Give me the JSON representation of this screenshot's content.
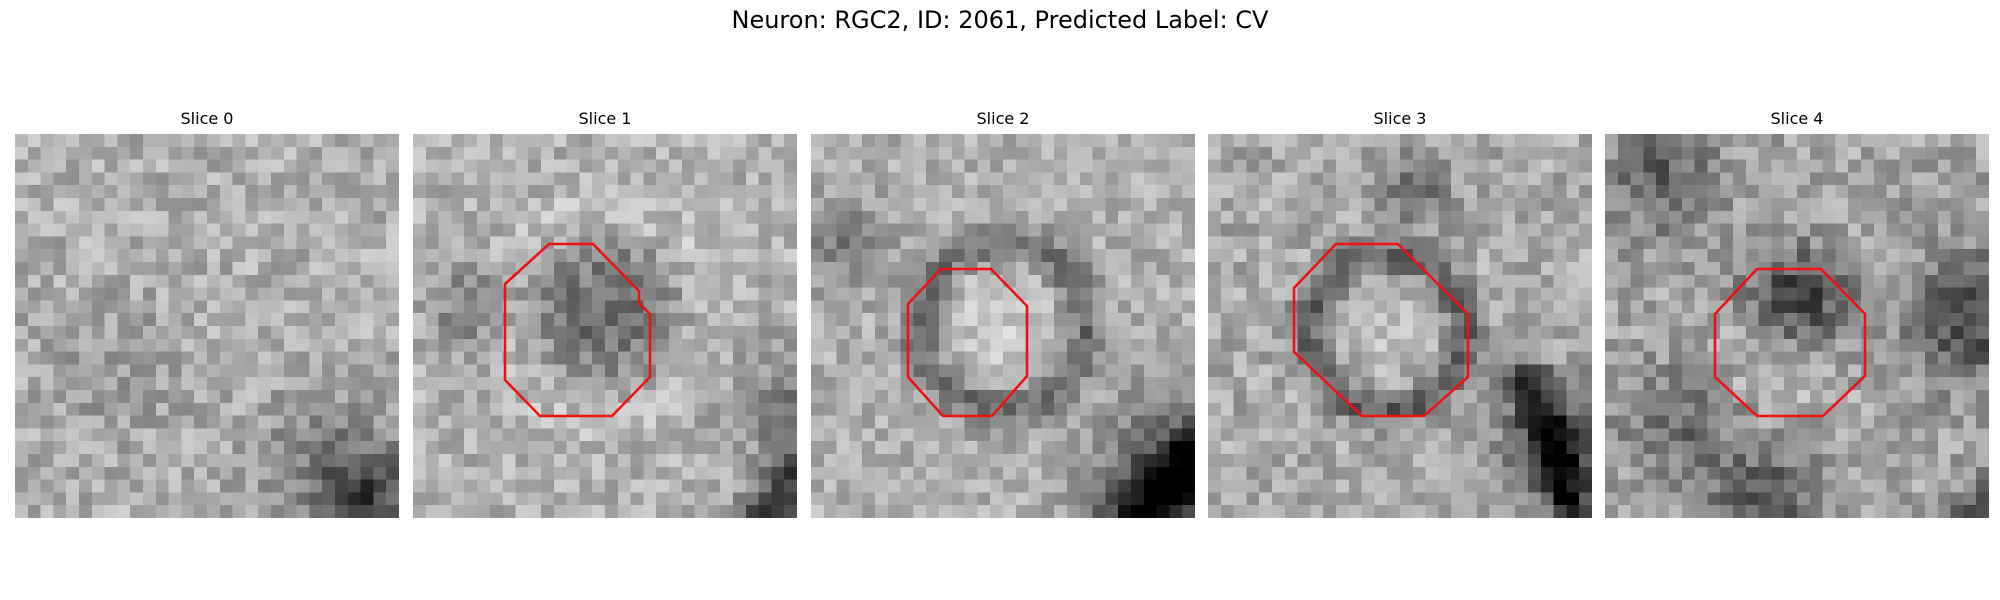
{
  "figure": {
    "title": "Neuron: RGC2, ID: 2061, Predicted Label: CV"
  },
  "panels": [
    {
      "title": "Slice 0",
      "has_outline": false,
      "scene": "uniform-noise"
    },
    {
      "title": "Slice 1",
      "has_outline": true,
      "scene": "dark-blob-in-ring"
    },
    {
      "title": "Slice 2",
      "has_outline": true,
      "scene": "bright-core-dark-ring"
    },
    {
      "title": "Slice 3",
      "has_outline": true,
      "scene": "dark-ring-with-band"
    },
    {
      "title": "Slice 4",
      "has_outline": true,
      "scene": "dark-top-lobe"
    }
  ],
  "style": {
    "outline_color": "#ee1111",
    "colormap": "grayscale"
  }
}
